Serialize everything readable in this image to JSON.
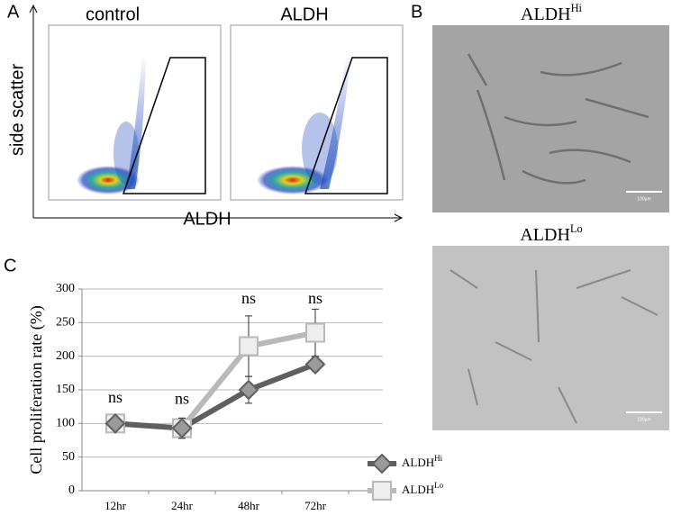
{
  "panel_a": {
    "label": "A",
    "plot_titles": [
      "control",
      "ALDH"
    ],
    "y_axis_label": "side scatter",
    "x_axis_label": "ALDH"
  },
  "panel_b": {
    "label": "B",
    "titles": [
      {
        "base": "ALDH",
        "sup": "Hi"
      },
      {
        "base": "ALDH",
        "sup": "Lo"
      }
    ],
    "scale_bar_labels": [
      "100μm",
      "100μm"
    ]
  },
  "panel_c_label": "C",
  "chart_data": {
    "type": "line",
    "y_label": "Cell proliferation rate  (%)",
    "categories": [
      "12hr",
      "24hr",
      "48hr",
      "72hr"
    ],
    "annotations": [
      "ns",
      "ns",
      "ns",
      "ns"
    ],
    "series": [
      {
        "name": {
          "base": "ALDH",
          "sup": "Hi"
        },
        "color": "#5f5f5f",
        "marker": "diamond",
        "values": [
          100,
          93,
          150,
          188
        ],
        "errors": [
          5,
          15,
          20,
          10
        ]
      },
      {
        "name": {
          "base": "ALDH",
          "sup": "Lo"
        },
        "color": "#b9b9b9",
        "marker": "square",
        "values": [
          100,
          93,
          215,
          235
        ],
        "errors": [
          10,
          15,
          45,
          35
        ]
      }
    ],
    "ylim": [
      0,
      300
    ],
    "yticks": [
      0,
      50,
      100,
      150,
      200,
      250,
      300
    ],
    "grid": true
  }
}
